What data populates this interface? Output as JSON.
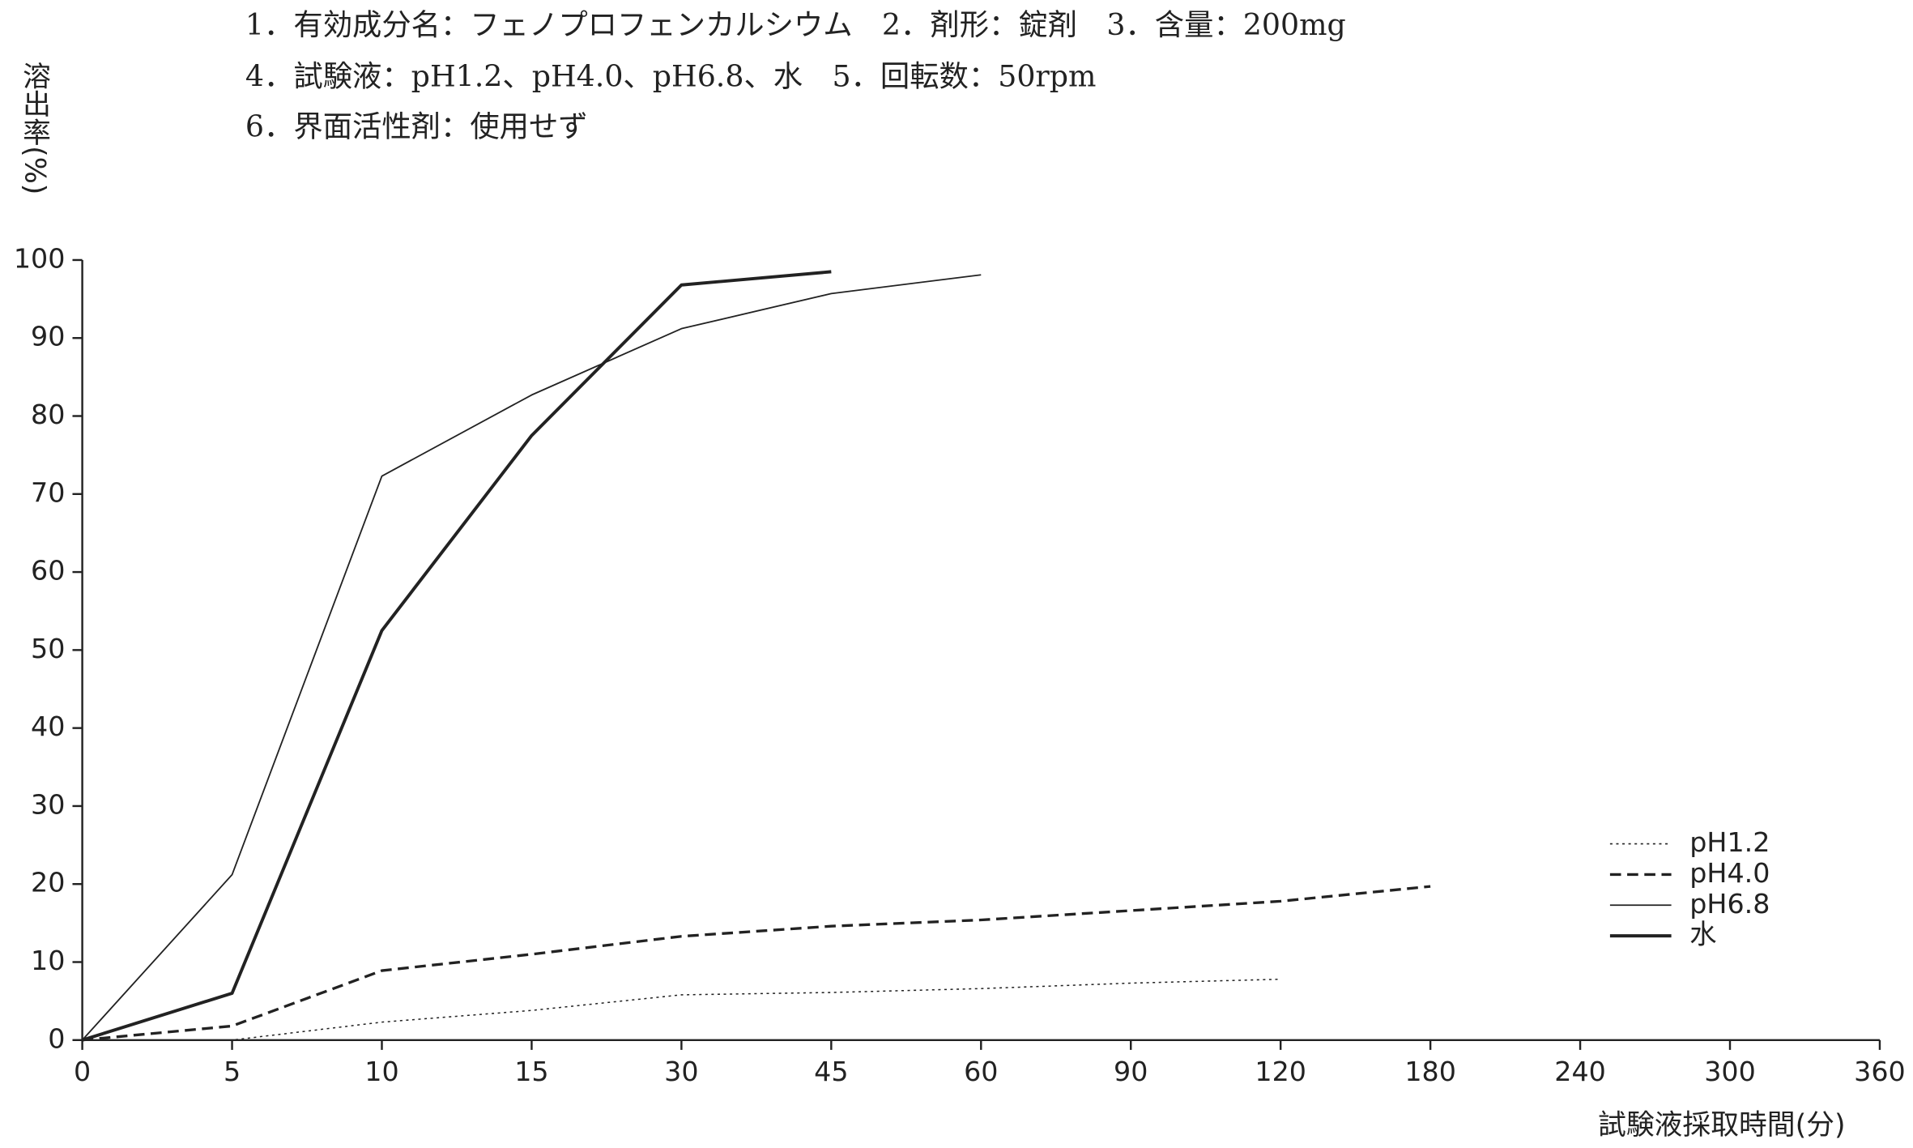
{
  "chart_data": {
    "type": "line",
    "title": [
      "1．有効成分名：フェノプロフェンカルシウム　2．剤形：錠剤　3．含量：200mg",
      "4．試験液：pH1.2、pH4.0、pH6.8、水　5．回転数：50rpm",
      "6．界面活性剤：使用せず"
    ],
    "y_label": "溶出率(%)",
    "x_label": "試験液採取時間(分)",
    "categories": [
      "0",
      "5",
      "10",
      "15",
      "30",
      "45",
      "60",
      "90",
      "120",
      "180",
      "240",
      "300",
      "360"
    ],
    "ylim": [
      0,
      100
    ],
    "yticks": [
      0,
      10,
      20,
      30,
      40,
      50,
      60,
      70,
      80,
      90,
      100
    ],
    "legend": "lower-right",
    "series": [
      {
        "name": "pH1.2",
        "color": "#222",
        "dash": "dotted",
        "width": 1,
        "values": [
          0,
          0,
          2.3,
          3.8,
          5.8,
          6.1,
          6.6,
          7.3,
          7.8,
          null,
          null,
          null,
          null
        ]
      },
      {
        "name": "pH4.0",
        "color": "#222",
        "dash": "dashed",
        "width": 2.2,
        "values": [
          0,
          1.8,
          8.9,
          11,
          13.3,
          14.6,
          15.4,
          16.6,
          17.8,
          19.7,
          null,
          null,
          null
        ]
      },
      {
        "name": "pH6.8",
        "color": "#222",
        "dash": "solid",
        "width": 1.2,
        "values": [
          0,
          21.2,
          72.3,
          82.7,
          91.2,
          95.7,
          98.1,
          null,
          null,
          null,
          null,
          null,
          null
        ]
      },
      {
        "name": "水",
        "color": "#222",
        "dash": "solid",
        "width": 2.6,
        "values": [
          0,
          6,
          52.5,
          77.5,
          96.8,
          98.5,
          null,
          null,
          null,
          null,
          null,
          null,
          null
        ]
      }
    ]
  }
}
